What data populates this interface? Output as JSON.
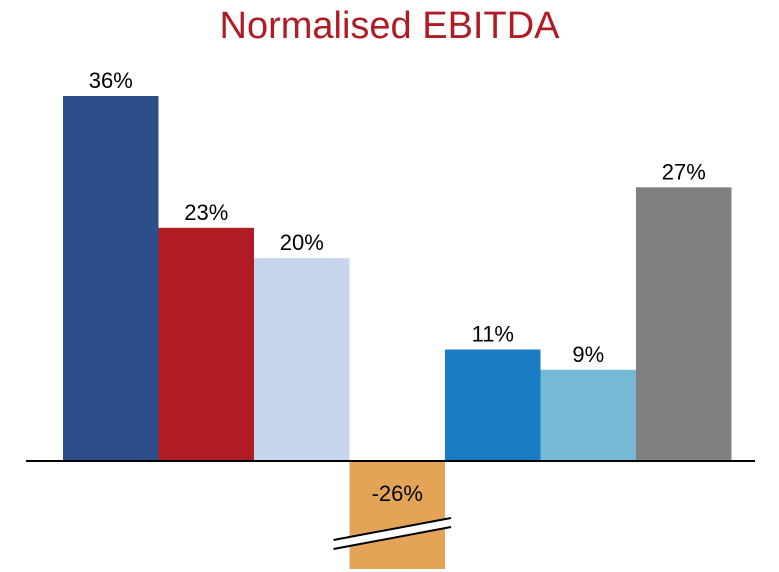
{
  "chart_data": {
    "type": "bar",
    "title": "Normalised EBITDA",
    "xlabel": "",
    "ylabel": "",
    "axis_break_on_negative_bar": true,
    "grid": false,
    "legend": "none",
    "values": [
      36,
      23,
      20,
      -26,
      11,
      9,
      27
    ],
    "value_labels": [
      "36%",
      "23%",
      "20%",
      "-26%",
      "11%",
      "9%",
      "27%"
    ],
    "colors": [
      "#2c4f8a",
      "#b01c24",
      "#c7d5ee",
      "#e4a458",
      "#1a7cc4",
      "#76b9d4",
      "#808080"
    ]
  }
}
